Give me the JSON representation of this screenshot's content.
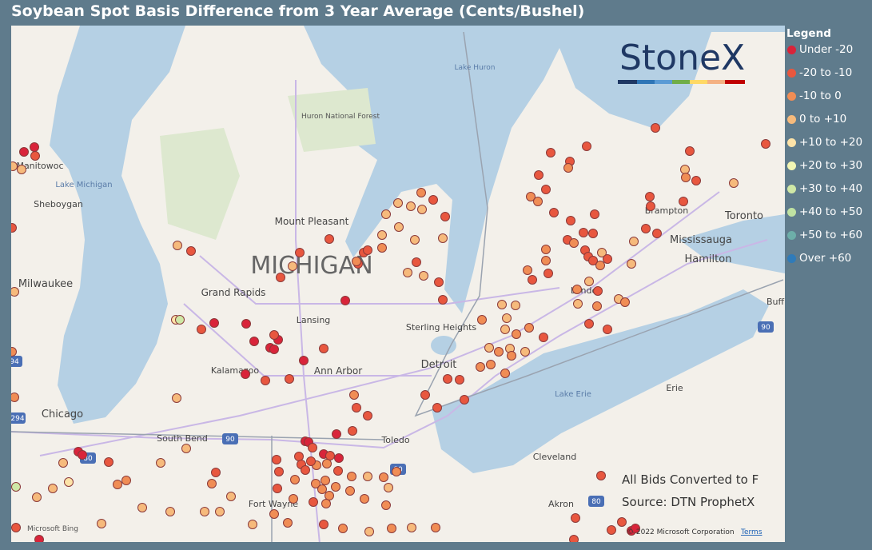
{
  "header": {
    "title": "Soybean Spot Basis Difference from 3 Year Average (Cents/Bushel)"
  },
  "legend": {
    "title": "Legend",
    "items": [
      {
        "label": "Under -20",
        "color": "#d9243a"
      },
      {
        "label": "-20 to -10",
        "color": "#e8573f"
      },
      {
        "label": "-10 to 0",
        "color": "#f08d55"
      },
      {
        "label": "0 to +10",
        "color": "#f6ba7c"
      },
      {
        "label": "+10 to +20",
        "color": "#fde3a8"
      },
      {
        "label": "+20 to +30",
        "color": "#f2f6b4"
      },
      {
        "label": "+30 to +40",
        "color": "#cfe8a6"
      },
      {
        "label": "+40 to +50",
        "color": "#bfe2a2"
      },
      {
        "label": "+50 to +60",
        "color": "#6daea9"
      },
      {
        "label": "Over +60",
        "color": "#2f7bb9"
      }
    ]
  },
  "logo": "StoneX",
  "map_labels": [
    "Lake Huron",
    "Huron National Forest",
    "MICHIGAN",
    "Mount Pleasant",
    "Grand Rapids",
    "Lansing",
    "Manitowoc",
    "Lake Michigan",
    "Sheboygan",
    "Milwaukee",
    "Kalamazoo",
    "Ann Arbor",
    "Sterling Heights",
    "Detroit",
    "Chicago",
    "South Bend",
    "Toledo",
    "Fort Wayne",
    "Cleveland",
    "Akron",
    "Lake Erie",
    "Erie",
    "London",
    "Brampton",
    "Toronto",
    "Mississauga",
    "Hamilton",
    "Buff",
    "94",
    "294",
    "80",
    "90",
    "80",
    "90",
    "80"
  ],
  "notes": [
    "All Bids Converted to F",
    "Source: DTN ProphetX"
  ],
  "attribution": {
    "bing": "Microsoft Bing",
    "copyright": "© 2022 Microsoft Corporation",
    "terms": "Terms"
  }
}
